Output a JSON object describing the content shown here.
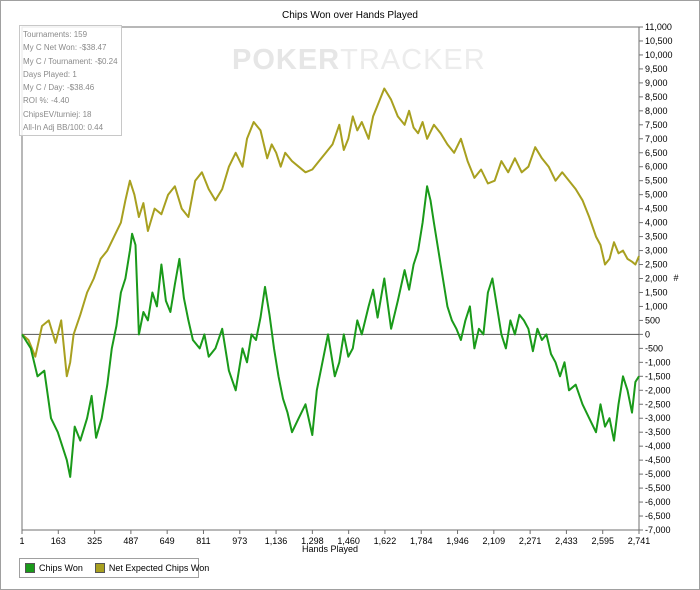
{
  "chart_data": {
    "type": "line",
    "title": "Chips Won over Hands Played",
    "xlabel": "Hands Played",
    "ylabel": "#",
    "xlim": [
      1,
      2741
    ],
    "ylim": [
      -7000,
      11000
    ],
    "x_ticks": [
      "1",
      "163",
      "325",
      "487",
      "649",
      "811",
      "973",
      "1,136",
      "1,298",
      "1,460",
      "1,622",
      "1,784",
      "1,946",
      "2,109",
      "2,271",
      "2,433",
      "2,595",
      "2,741"
    ],
    "y_ticks": [
      "11,000",
      "10,500",
      "10,000",
      "9,500",
      "9,000",
      "8,500",
      "8,000",
      "7,500",
      "7,000",
      "6,500",
      "6,000",
      "5,500",
      "5,000",
      "4,500",
      "4,000",
      "3,500",
      "3,000",
      "2,500",
      "2,000",
      "1,500",
      "1,000",
      "500",
      "0",
      "-500",
      "-1,000",
      "-1,500",
      "-2,000",
      "-2,500",
      "-3,000",
      "-3,500",
      "-4,000",
      "-4,500",
      "-5,000",
      "-5,500",
      "-6,000",
      "-6,500",
      "-7,000"
    ],
    "y_tick_values": [
      11000,
      10500,
      10000,
      9500,
      9000,
      8500,
      8000,
      7500,
      7000,
      6500,
      6000,
      5500,
      5000,
      4500,
      4000,
      3500,
      3000,
      2500,
      2000,
      1500,
      1000,
      500,
      0,
      -500,
      -1000,
      -1500,
      -2000,
      -2500,
      -3000,
      -3500,
      -4000,
      -4500,
      -5000,
      -5500,
      -6000,
      -6500,
      -7000
    ],
    "grid": false,
    "legend_position": "bottom-left",
    "series": [
      {
        "name": "Chips Won",
        "color": "#1a9a1a",
        "x": [
          1,
          40,
          70,
          100,
          130,
          160,
          200,
          215,
          235,
          260,
          290,
          310,
          330,
          355,
          380,
          400,
          420,
          440,
          460,
          480,
          490,
          505,
          520,
          540,
          560,
          580,
          600,
          620,
          640,
          660,
          680,
          700,
          720,
          740,
          760,
          790,
          811,
          830,
          860,
          890,
          920,
          950,
          980,
          1000,
          1020,
          1040,
          1060,
          1080,
          1100,
          1120,
          1140,
          1160,
          1180,
          1200,
          1230,
          1260,
          1290,
          1310,
          1330,
          1360,
          1390,
          1410,
          1430,
          1450,
          1470,
          1490,
          1510,
          1540,
          1560,
          1580,
          1610,
          1640,
          1670,
          1700,
          1720,
          1740,
          1760,
          1780,
          1800,
          1815,
          1830,
          1850,
          1870,
          1890,
          1910,
          1930,
          1950,
          1970,
          1990,
          2010,
          2030,
          2050,
          2070,
          2090,
          2110,
          2130,
          2150,
          2170,
          2190,
          2210,
          2230,
          2250,
          2270,
          2290,
          2310,
          2330,
          2350,
          2370,
          2390,
          2410,
          2430,
          2460,
          2490,
          2520,
          2550,
          2570,
          2590,
          2610,
          2630,
          2650,
          2670,
          2690,
          2710,
          2725,
          2741
        ],
        "y": [
          0,
          -500,
          -1500,
          -1300,
          -3000,
          -3500,
          -4500,
          -5100,
          -3300,
          -3800,
          -3000,
          -2200,
          -3700,
          -3000,
          -1800,
          -500,
          300,
          1500,
          2000,
          3000,
          3600,
          3200,
          0,
          800,
          500,
          1500,
          1000,
          2500,
          1200,
          800,
          1800,
          2700,
          1300,
          500,
          -200,
          -500,
          0,
          -800,
          -500,
          200,
          -1300,
          -2000,
          -500,
          -1000,
          0,
          -200,
          600,
          1700,
          700,
          -500,
          -1500,
          -2300,
          -2800,
          -3500,
          -3000,
          -2500,
          -3600,
          -2000,
          -1200,
          0,
          -1500,
          -1000,
          0,
          -800,
          -500,
          500,
          0,
          1000,
          1600,
          600,
          2000,
          200,
          1200,
          2300,
          1600,
          2500,
          3000,
          4000,
          5300,
          4800,
          4000,
          3000,
          2000,
          1000,
          500,
          200,
          -200,
          500,
          1000,
          -500,
          200,
          0,
          1500,
          2000,
          1000,
          0,
          -500,
          500,
          0,
          700,
          500,
          200,
          -600,
          200,
          -200,
          0,
          -700,
          -1000,
          -1500,
          -1000,
          -2000,
          -1800,
          -2500,
          -3000,
          -3500,
          -2500,
          -3300,
          -3000,
          -3800,
          -2500,
          -1500,
          -2000,
          -2800,
          -1700,
          -1500
        ]
      },
      {
        "name": "Net Expected Chips Won",
        "color": "#a8a020",
        "x": [
          1,
          30,
          60,
          90,
          120,
          150,
          175,
          200,
          215,
          230,
          260,
          290,
          320,
          350,
          380,
          410,
          440,
          460,
          480,
          500,
          520,
          540,
          560,
          590,
          620,
          650,
          680,
          710,
          740,
          770,
          800,
          830,
          860,
          890,
          920,
          950,
          980,
          1000,
          1030,
          1060,
          1090,
          1110,
          1130,
          1150,
          1170,
          1200,
          1230,
          1260,
          1290,
          1320,
          1350,
          1380,
          1410,
          1430,
          1450,
          1470,
          1490,
          1510,
          1540,
          1560,
          1580,
          1610,
          1640,
          1670,
          1700,
          1720,
          1740,
          1760,
          1780,
          1800,
          1830,
          1860,
          1890,
          1920,
          1950,
          1980,
          2010,
          2040,
          2070,
          2100,
          2130,
          2160,
          2190,
          2220,
          2250,
          2280,
          2310,
          2340,
          2370,
          2400,
          2430,
          2460,
          2490,
          2520,
          2550,
          2570,
          2590,
          2610,
          2630,
          2650,
          2670,
          2690,
          2710,
          2725,
          2741
        ],
        "y": [
          0,
          -200,
          -800,
          300,
          500,
          -300,
          500,
          -1500,
          -1000,
          0,
          700,
          1500,
          2000,
          2700,
          3000,
          3500,
          4000,
          4800,
          5500,
          5000,
          4200,
          4700,
          3700,
          4500,
          4300,
          5000,
          5300,
          4500,
          4200,
          5500,
          5800,
          5200,
          4800,
          5200,
          6000,
          6500,
          6000,
          7000,
          7600,
          7300,
          6300,
          6800,
          6500,
          6000,
          6500,
          6200,
          6000,
          5800,
          5900,
          6200,
          6500,
          6800,
          7500,
          6600,
          7000,
          7800,
          7300,
          7600,
          7000,
          7800,
          8200,
          8800,
          8400,
          7800,
          7500,
          8000,
          7400,
          7200,
          7600,
          7000,
          7500,
          7200,
          6800,
          6500,
          7000,
          6200,
          5600,
          5900,
          5400,
          5500,
          6200,
          5800,
          6300,
          5800,
          6000,
          6700,
          6300,
          6000,
          5500,
          5800,
          5500,
          5200,
          4800,
          4200,
          3500,
          3200,
          2500,
          2700,
          3300,
          2900,
          3000,
          2700,
          2600,
          2500,
          2800
        ]
      }
    ]
  },
  "stats": [
    "Tournaments: 159",
    "My C Net Won: -$38.47",
    "My C / Tournament: -$0.24",
    "Days Played: 1",
    "My C / Day: -$38.46",
    "ROI %: -4.40",
    "ChipsEV/turniej: 18",
    "All-In Adj BB/100: 0.44"
  ],
  "watermark": {
    "part1": "POKER",
    "part2": "TRACKER"
  },
  "legend": [
    {
      "label": "Chips Won",
      "color": "#1a9a1a"
    },
    {
      "label": "Net Expected Chips Won",
      "color": "#a8a020"
    }
  ]
}
